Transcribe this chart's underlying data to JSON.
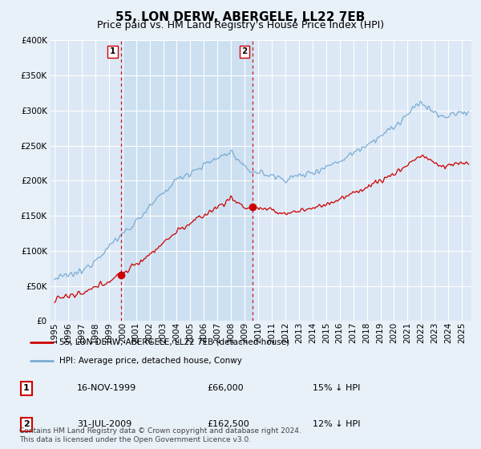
{
  "title": "55, LON DERW, ABERGELE, LL22 7EB",
  "subtitle": "Price paid vs. HM Land Registry's House Price Index (HPI)",
  "ylim": [
    0,
    400000
  ],
  "yticks": [
    0,
    50000,
    100000,
    150000,
    200000,
    250000,
    300000,
    350000,
    400000
  ],
  "background_color": "#e8f0f8",
  "plot_bg_color": "#dce8f5",
  "shade_color": "#c8ddf0",
  "sale1": {
    "date_num": 1999.88,
    "price": 66000,
    "label": "1",
    "pct": "15% ↓ HPI",
    "date_str": "16-NOV-1999"
  },
  "sale2": {
    "date_num": 2009.58,
    "price": 162500,
    "label": "2",
    "pct": "12% ↓ HPI",
    "date_str": "31-JUL-2009"
  },
  "legend_label_red": "55, LON DERW, ABERGELE, LL22 7EB (detached house)",
  "legend_label_blue": "HPI: Average price, detached house, Conwy",
  "footer": "Contains HM Land Registry data © Crown copyright and database right 2024.\nThis data is licensed under the Open Government Licence v3.0.",
  "red_color": "#cc0000",
  "blue_color": "#7aadd4",
  "vline_color": "#cc0000",
  "title_fontsize": 11,
  "subtitle_fontsize": 9,
  "tick_fontsize": 7.5
}
